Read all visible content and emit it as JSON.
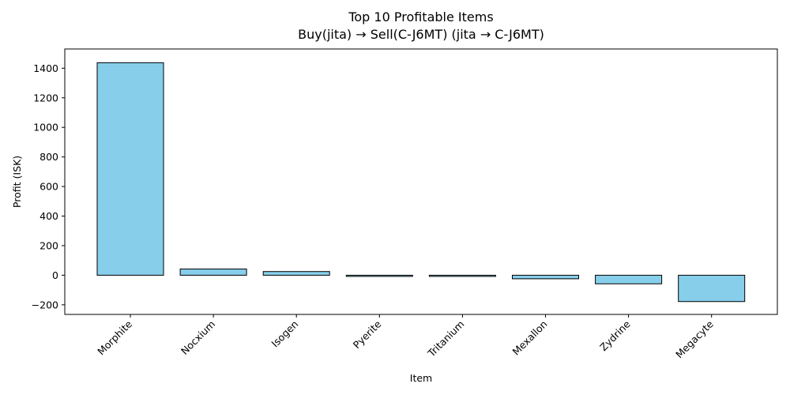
{
  "chart_data": {
    "type": "bar",
    "title": "Top 10 Profitable Items",
    "subtitle": "Buy(jita) → Sell(C-J6MT) (jita → C-J6MT)",
    "xlabel": "Item",
    "ylabel": "Profit (ISK)",
    "categories": [
      "Morphite",
      "Nocxium",
      "Isogen",
      "Pyerite",
      "Tritanium",
      "Mexallon",
      "Zydrine",
      "Megacyte"
    ],
    "values": [
      1437,
      42,
      25,
      -8,
      -6,
      -24,
      -58,
      -178
    ],
    "ylim": [
      -265,
      1530
    ],
    "yticks": [
      -200,
      0,
      200,
      400,
      600,
      800,
      1000,
      1200,
      1400
    ],
    "grid": false,
    "bar_color": "#87ceeb",
    "edge_color": "#000000"
  }
}
